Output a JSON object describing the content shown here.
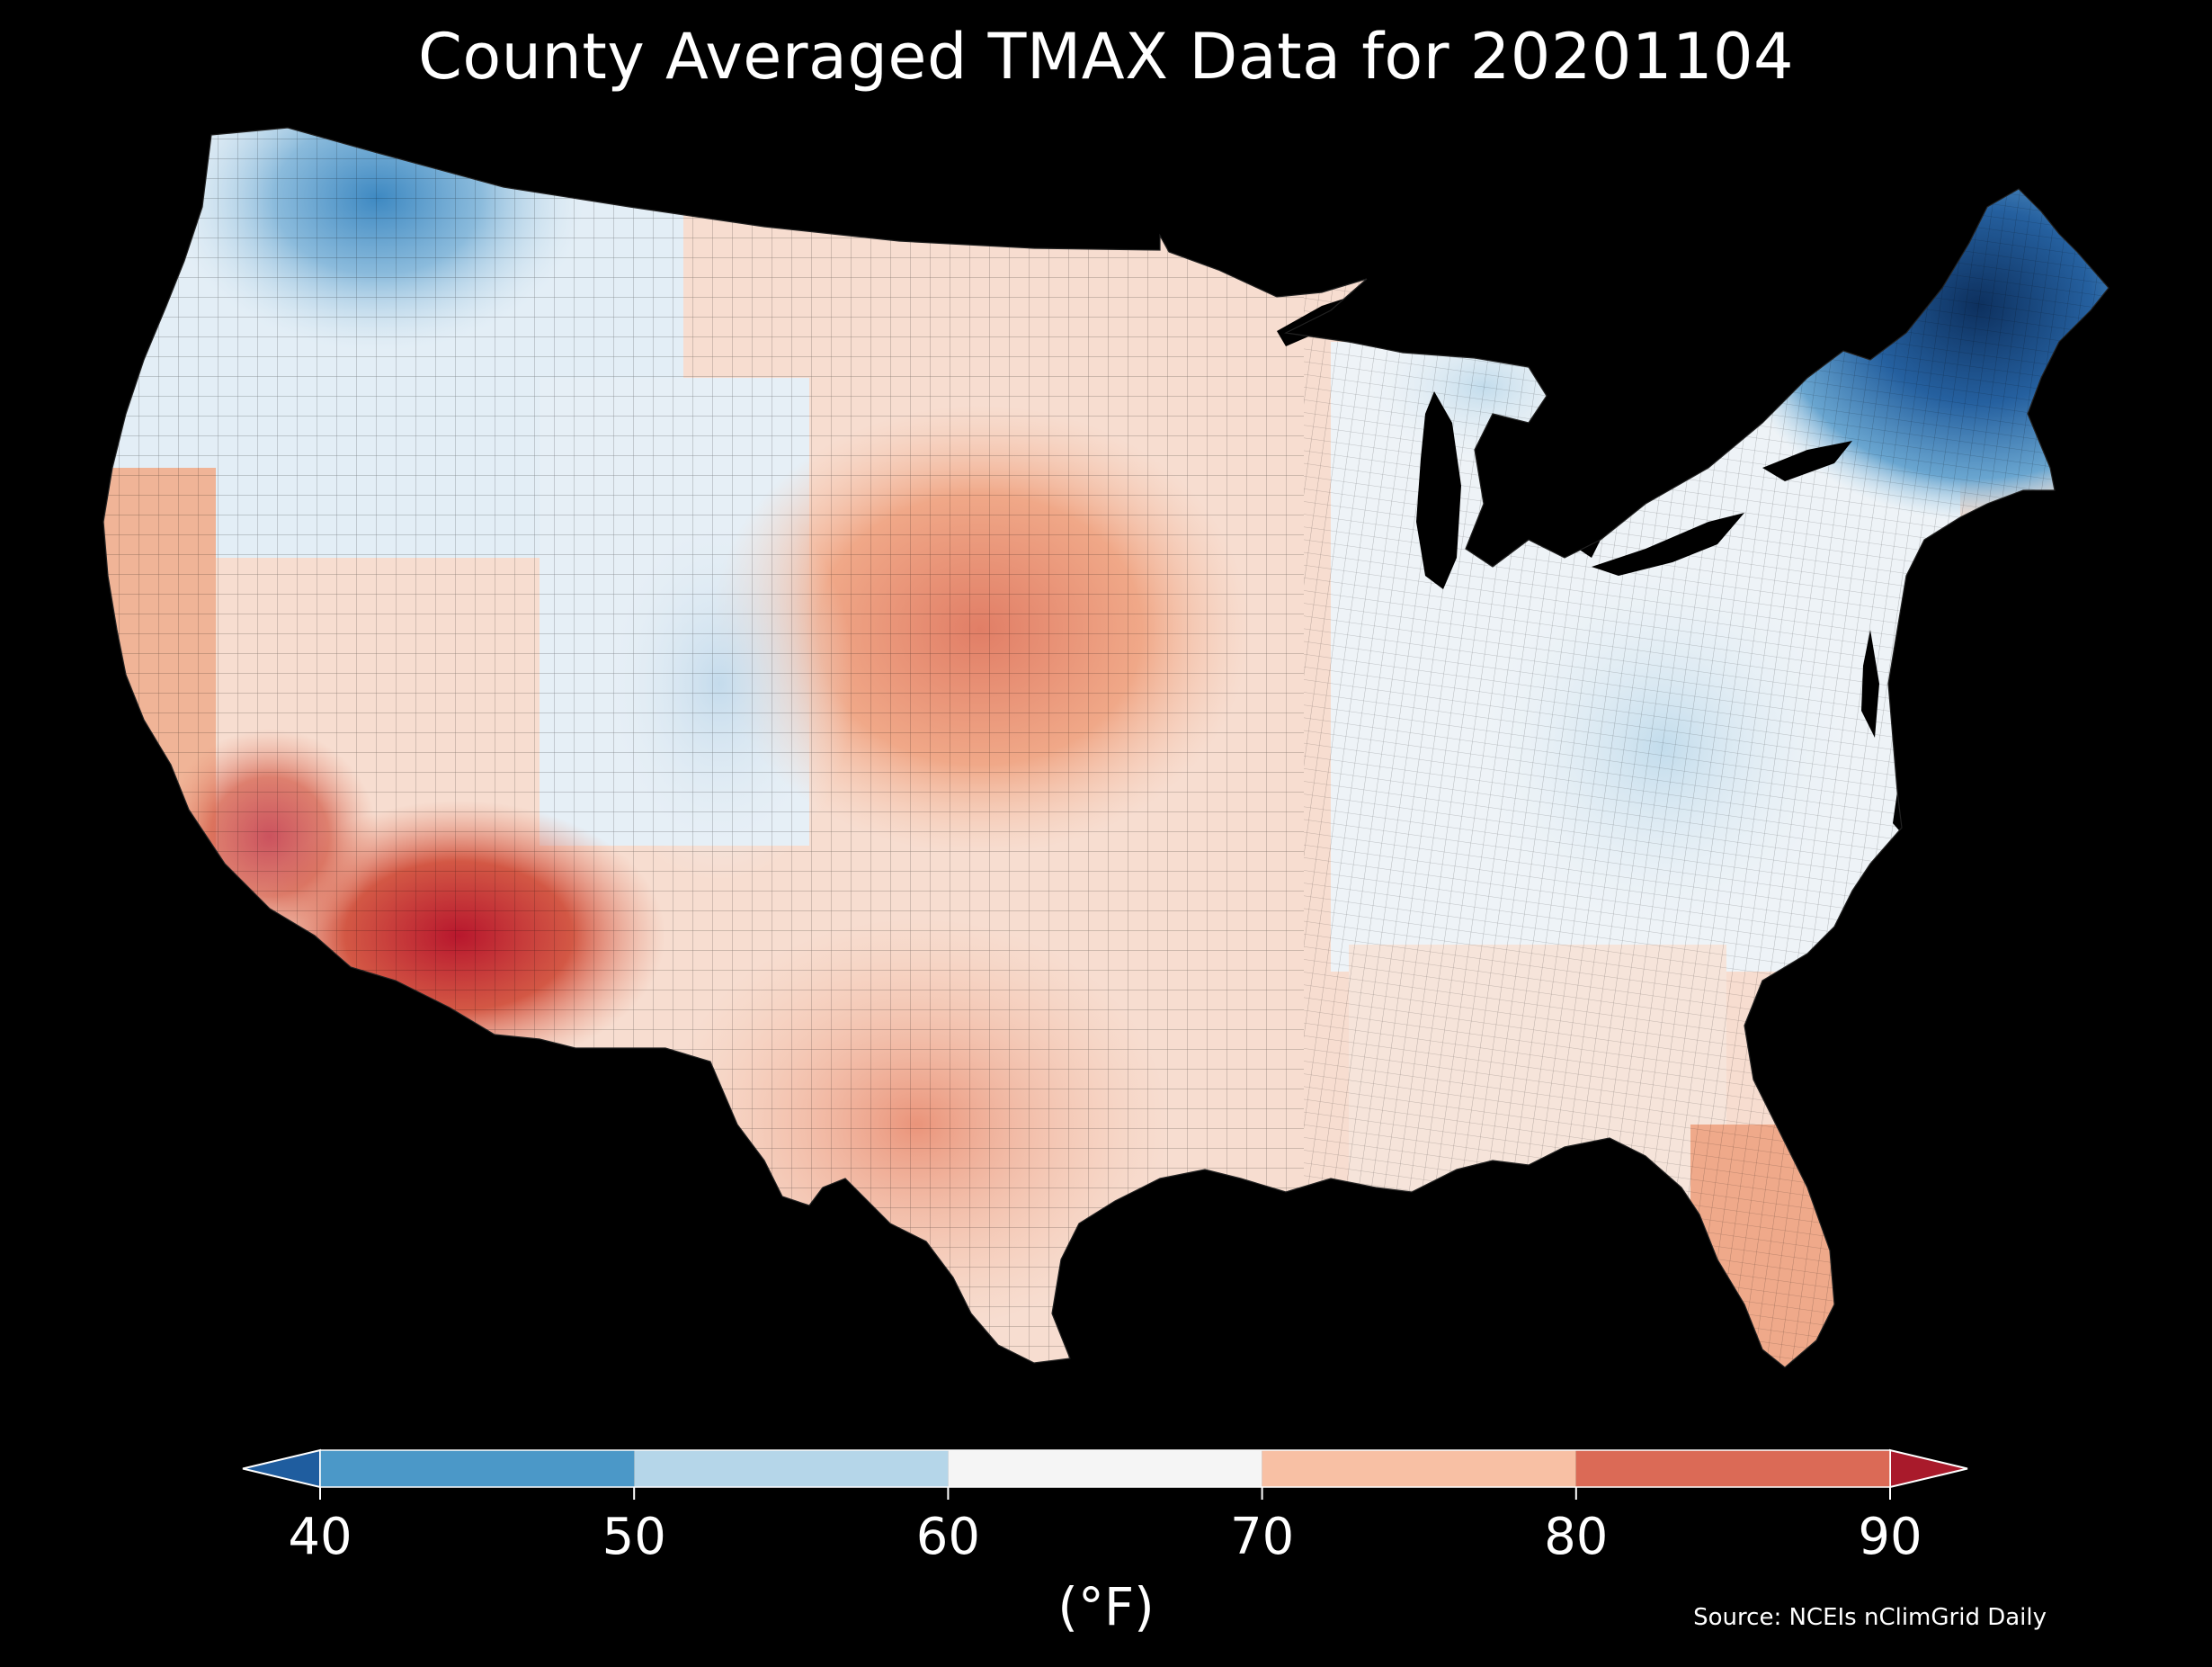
{
  "title": "County Averaged TMAX Data for 20201104",
  "source": "Source: NCEIs nClimGrid Daily",
  "colorbar": {
    "unit_label": "(°F)",
    "ticks": [
      "40",
      "50",
      "60",
      "70",
      "80",
      "90"
    ],
    "bins": [
      {
        "from": 40,
        "to": 50,
        "color": "#4b98c8"
      },
      {
        "from": 50,
        "to": 60,
        "color": "#b5d6e9"
      },
      {
        "from": 60,
        "to": 70,
        "color": "#f5f5f5"
      },
      {
        "from": 70,
        "to": 80,
        "color": "#f8c0a4"
      },
      {
        "from": 80,
        "to": 90,
        "color": "#db6a56"
      }
    ],
    "under_color": "#1f5d9f",
    "over_color": "#a91a2b"
  },
  "chart_data": {
    "type": "heatmap",
    "title": "County Averaged TMAX Data for 20201104",
    "colorbar_range": [
      40,
      90
    ],
    "colorbar_extend": "both",
    "colorbar_label": "(°F)"
  }
}
